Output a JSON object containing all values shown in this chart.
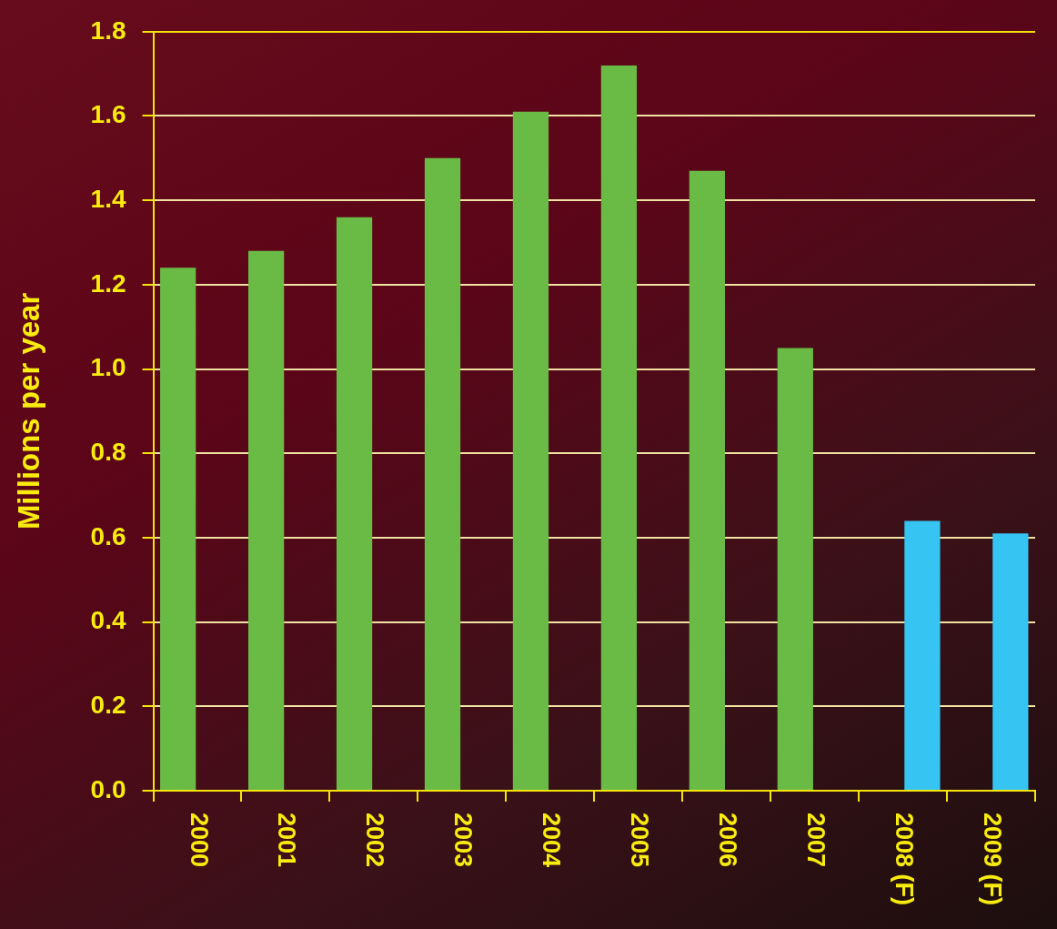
{
  "chart_data": {
    "type": "bar",
    "ylabel": "Millions per year",
    "categories": [
      "2000",
      "2001",
      "2002",
      "2003",
      "2004",
      "2005",
      "2006",
      "2007",
      "2008 (F)",
      "2009 (F)"
    ],
    "series": [
      {
        "color": "#6abb46",
        "values": [
          1.24,
          1.28,
          1.36,
          1.5,
          1.61,
          1.72,
          1.47,
          1.05,
          null,
          null
        ]
      },
      {
        "color": "#36c5f2",
        "values": [
          null,
          null,
          null,
          null,
          null,
          null,
          null,
          null,
          0.64,
          0.61
        ]
      }
    ],
    "ylim": [
      0,
      1.8
    ],
    "yticks": [
      {
        "value": 0,
        "label": "0.0"
      },
      0.2,
      0.4,
      0.6,
      0.8,
      {
        "value": 1,
        "label": "1.0"
      },
      1.2,
      1.4,
      1.6,
      1.8
    ],
    "grid": "y"
  }
}
